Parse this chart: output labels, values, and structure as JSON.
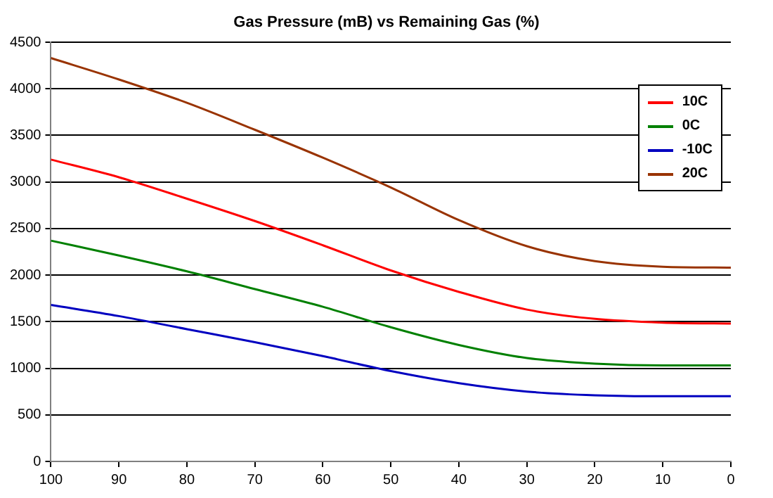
{
  "chart_data": {
    "type": "line",
    "title": "Gas Pressure (mB) vs Remaining Gas (%)",
    "x": [
      100,
      90,
      80,
      70,
      60,
      50,
      40,
      30,
      20,
      10,
      0
    ],
    "series": [
      {
        "name": "10C",
        "color": "#ff0000",
        "values": [
          3240,
          3050,
          2820,
          2580,
          2320,
          2050,
          1820,
          1630,
          1530,
          1490,
          1480
        ]
      },
      {
        "name": "0C",
        "color": "#008000",
        "values": [
          2370,
          2210,
          2040,
          1850,
          1660,
          1440,
          1250,
          1110,
          1050,
          1030,
          1030
        ]
      },
      {
        "name": "-10C",
        "color": "#0000c0",
        "values": [
          1680,
          1560,
          1420,
          1280,
          1130,
          970,
          840,
          750,
          710,
          700,
          700
        ]
      },
      {
        "name": "20C",
        "color": "#993300",
        "values": [
          4330,
          4100,
          3850,
          3560,
          3260,
          2940,
          2590,
          2310,
          2150,
          2090,
          2080
        ]
      }
    ],
    "xlim": [
      100,
      0
    ],
    "xticks": [
      100,
      90,
      80,
      70,
      60,
      50,
      40,
      30,
      20,
      10,
      0
    ],
    "ylim": [
      0,
      4500
    ],
    "yticks": [
      0,
      500,
      1000,
      1500,
      2000,
      2500,
      3000,
      3500,
      4000,
      4500
    ],
    "grid": "y",
    "legend": "top right",
    "marker": "none",
    "line_style": "solid"
  }
}
